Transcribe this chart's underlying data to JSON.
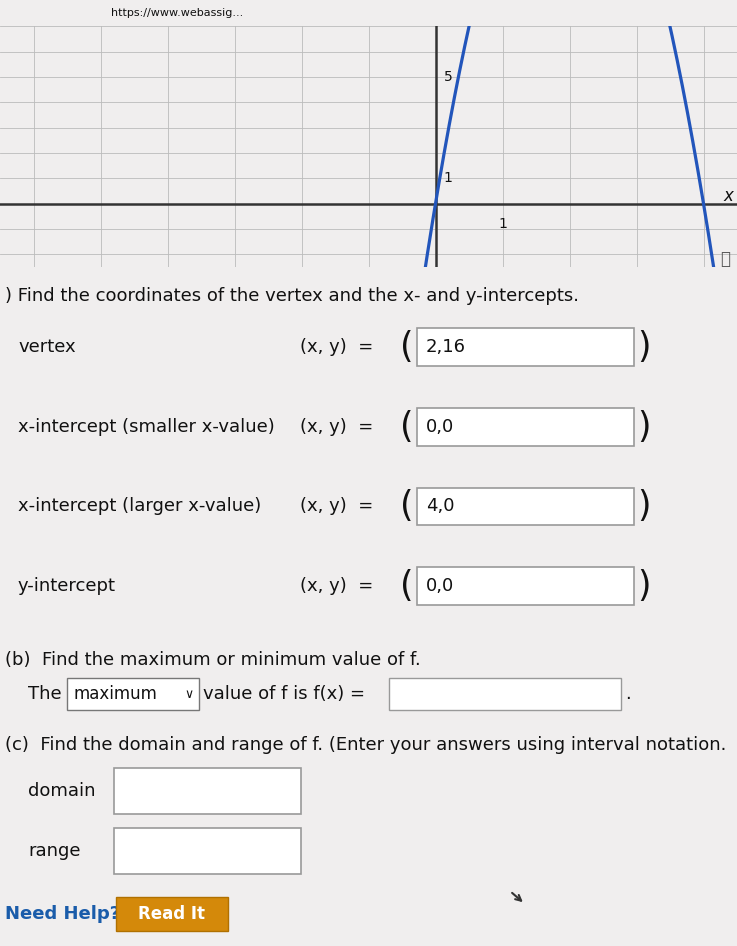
{
  "title_bar_text": "https://www.webassig...",
  "graph": {
    "xlim_min": -6.5,
    "xlim_max": 4.5,
    "ylim_min": -2.5,
    "ylim_max": 7.0,
    "curve_color": "#2255bb",
    "bg_color": "#f8f8f8",
    "grid_color": "#bbbbbb",
    "axis_color": "#333333"
  },
  "section_a_label": ") Find the coordinates of the vertex and the x- and y-intercepts.",
  "rows": [
    {
      "label": "vertex",
      "value": "2,16"
    },
    {
      "label": "x-intercept (smaller x-value)",
      "value": "0,0"
    },
    {
      "label": "x-intercept (larger x-value)",
      "value": "4,0"
    },
    {
      "label": "y-intercept",
      "value": "0,0"
    }
  ],
  "section_b_label": "(b)  Find the maximum or minimum value of f.",
  "section_b_dropdown": "maximum",
  "section_c_label": "(c)  Find the domain and range of f. (Enter your answers using interval notation.",
  "domain_label": "domain",
  "range_label": "range",
  "need_help_label": "Need Help?",
  "read_it_label": "Read It",
  "bg_page": "#f0eeee",
  "bg_white": "#ffffff",
  "box_fill": "#ffffff",
  "box_edge": "#999999",
  "dropdown_fill": "#ffffff",
  "dropdown_edge": "#777777",
  "text_color": "#111111",
  "blue_line_color": "#2255bb",
  "read_it_bg": "#d4890a",
  "read_it_text": "#ffffff",
  "need_help_color": "#1a5caa"
}
